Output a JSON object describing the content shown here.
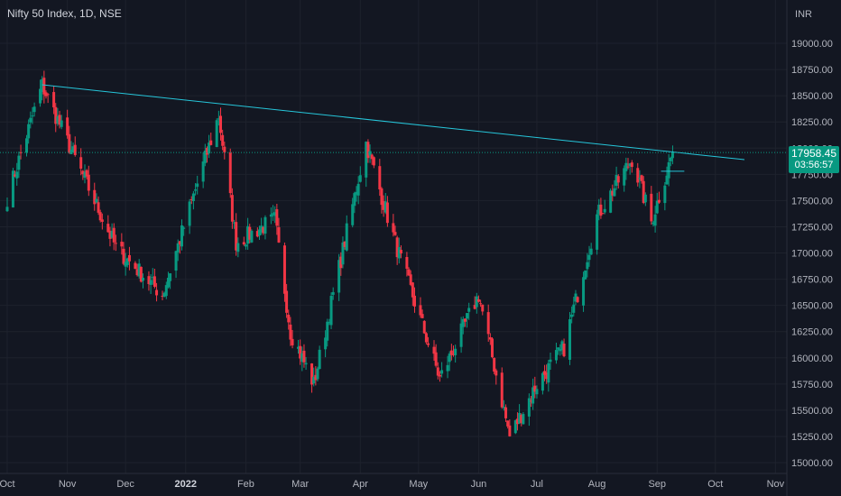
{
  "header": {
    "title": "Nifty 50 Index, 1D, NSE",
    "currency": "INR"
  },
  "last_price": {
    "value": "17958.45",
    "countdown": "03:56:57"
  },
  "chart_data": {
    "type": "candlestick",
    "title": "Nifty 50 Index, 1D, NSE",
    "ylabel": "INR",
    "ylim": [
      14950,
      19300
    ],
    "y_ticks": [
      "19000.00",
      "18750.00",
      "18500.00",
      "18250.00",
      "18000.00",
      "17750.00",
      "17500.00",
      "17250.00",
      "17000.00",
      "16750.00",
      "16500.00",
      "16250.00",
      "16000.00",
      "15750.00",
      "15500.00",
      "15250.00",
      "15000.00"
    ],
    "x_ticks": [
      {
        "label": "Oct",
        "day": 0
      },
      {
        "label": "Nov",
        "day": 31
      },
      {
        "label": "Dec",
        "day": 61
      },
      {
        "label": "2022",
        "day": 92,
        "bold": true
      },
      {
        "label": "Feb",
        "day": 123
      },
      {
        "label": "Mar",
        "day": 151
      },
      {
        "label": "Apr",
        "day": 182
      },
      {
        "label": "May",
        "day": 212
      },
      {
        "label": "Jun",
        "day": 243
      },
      {
        "label": "Jul",
        "day": 273
      },
      {
        "label": "Aug",
        "day": 304
      },
      {
        "label": "Sep",
        "day": 335
      },
      {
        "label": "Oct",
        "day": 365
      },
      {
        "label": "Nov",
        "day": 396
      }
    ],
    "trendline": {
      "from": [
        "2021-10-19",
        18604
      ],
      "to": [
        "2022-10-16",
        17890
      ]
    },
    "resistance_line": {
      "from": [
        "2022-09-03",
        17780
      ],
      "to": [
        "2022-09-15",
        17780
      ]
    },
    "last_price": 17958.45,
    "colors": {
      "up": "#089981",
      "down": "#f23645",
      "trendline": "#26c6da"
    },
    "key_points": [
      {
        "date": "2021-10-01",
        "close": 17530
      },
      {
        "date": "2021-10-19",
        "close": 18600
      },
      {
        "date": "2021-11-05",
        "close": 17900
      },
      {
        "date": "2021-11-26",
        "close": 17050
      },
      {
        "date": "2021-12-20",
        "close": 16600
      },
      {
        "date": "2022-01-18",
        "close": 18310
      },
      {
        "date": "2022-01-27",
        "close": 17100
      },
      {
        "date": "2022-02-16",
        "close": 17320
      },
      {
        "date": "2022-02-24",
        "close": 16250
      },
      {
        "date": "2022-03-08",
        "close": 15750
      },
      {
        "date": "2022-04-04",
        "close": 18050
      },
      {
        "date": "2022-04-19",
        "close": 17100
      },
      {
        "date": "2022-05-12",
        "close": 15800
      },
      {
        "date": "2022-06-01",
        "close": 16600
      },
      {
        "date": "2022-06-17",
        "close": 15250
      },
      {
        "date": "2022-07-01",
        "close": 15750
      },
      {
        "date": "2022-07-15",
        "close": 16100
      },
      {
        "date": "2022-08-01",
        "close": 17350
      },
      {
        "date": "2022-08-19",
        "close": 17900
      },
      {
        "date": "2022-08-29",
        "close": 17300
      },
      {
        "date": "2022-09-09",
        "close": 17958.45
      }
    ]
  }
}
